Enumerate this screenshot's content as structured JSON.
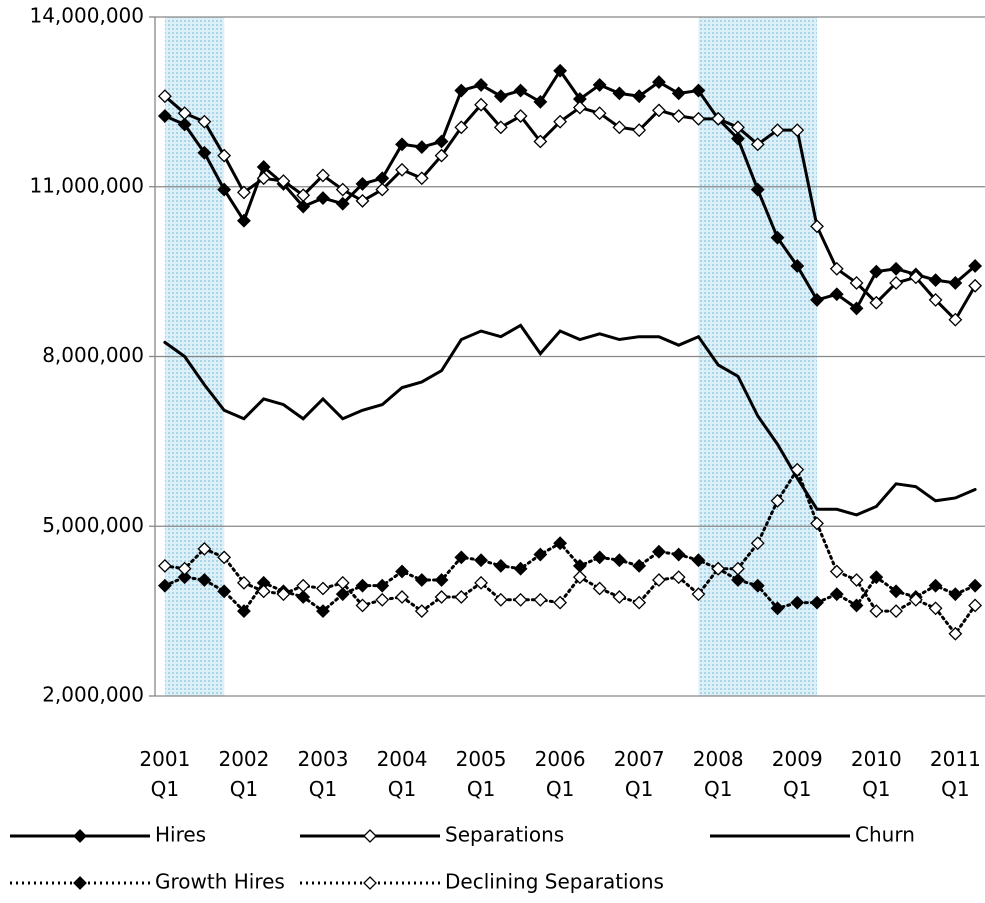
{
  "chart_data": {
    "type": "line",
    "categories": [
      "2001 Q1",
      null,
      null,
      null,
      "2002 Q1",
      null,
      null,
      null,
      "2003 Q1",
      null,
      null,
      null,
      "2004 Q1",
      null,
      null,
      null,
      "2005 Q1",
      null,
      null,
      null,
      "2006 Q1",
      null,
      null,
      null,
      "2007 Q1",
      null,
      null,
      null,
      "2008 Q1",
      null,
      null,
      null,
      "2009 Q1",
      null,
      null,
      null,
      "2010 Q1",
      null,
      null,
      null,
      "2011 Q1",
      null
    ],
    "ylim": [
      2000000,
      14000000
    ],
    "yticks": [
      {
        "value": 2000000,
        "label": "2,000,000"
      },
      {
        "value": 5000000,
        "label": "5,000,000"
      },
      {
        "value": 8000000,
        "label": "8,000,000"
      },
      {
        "value": 11000000,
        "label": "11,000,000"
      },
      {
        "value": 14000000,
        "label": "14,000,000"
      }
    ],
    "grid": true,
    "recession_shading": [
      {
        "start": 0,
        "end": 3
      },
      {
        "start": 27,
        "end": 33
      }
    ],
    "series": [
      {
        "name": "Hires",
        "color": "#000000",
        "line_style": "solid",
        "marker": "diamond-filled",
        "values": [
          12250000,
          12100000,
          11600000,
          10950000,
          10400000,
          11350000,
          11050000,
          10650000,
          10800000,
          10700000,
          11050000,
          11150000,
          11750000,
          11700000,
          11800000,
          12700000,
          12800000,
          12600000,
          12700000,
          12500000,
          13050000,
          12550000,
          12800000,
          12650000,
          12600000,
          12850000,
          12650000,
          12700000,
          12200000,
          11850000,
          10950000,
          10100000,
          9600000,
          9000000,
          9100000,
          8850000,
          9500000,
          9550000,
          9450000,
          9350000,
          9300000,
          9600000
        ]
      },
      {
        "name": "Separations",
        "color": "#000000",
        "line_style": "solid",
        "marker": "diamond-open",
        "values": [
          12600000,
          12300000,
          12150000,
          11550000,
          10900000,
          11150000,
          11100000,
          10850000,
          11200000,
          10950000,
          10750000,
          10950000,
          11300000,
          11150000,
          11550000,
          12050000,
          12450000,
          12050000,
          12250000,
          11800000,
          12150000,
          12400000,
          12300000,
          12050000,
          12000000,
          12350000,
          12250000,
          12200000,
          12200000,
          12050000,
          11750000,
          12000000,
          12000000,
          10300000,
          9550000,
          9300000,
          8950000,
          9300000,
          9400000,
          9000000,
          8650000,
          9250000
        ]
      },
      {
        "name": "Churn",
        "color": "#000000",
        "line_style": "solid",
        "marker": "none",
        "values": [
          8250000,
          8000000,
          7500000,
          7050000,
          6900000,
          7250000,
          7150000,
          6900000,
          7250000,
          6900000,
          7050000,
          7150000,
          7450000,
          7550000,
          7750000,
          8300000,
          8450000,
          8350000,
          8550000,
          8050000,
          8450000,
          8300000,
          8400000,
          8300000,
          8350000,
          8350000,
          8200000,
          8350000,
          7850000,
          7650000,
          6950000,
          6450000,
          5850000,
          5300000,
          5300000,
          5200000,
          5350000,
          5750000,
          5700000,
          5450000,
          5500000,
          5650000
        ]
      },
      {
        "name": "Growth Hires",
        "color": "#000000",
        "line_style": "dotted",
        "marker": "diamond-filled",
        "values": [
          3950000,
          4100000,
          4050000,
          3850000,
          3500000,
          4000000,
          3850000,
          3750000,
          3500000,
          3800000,
          3950000,
          3950000,
          4200000,
          4050000,
          4050000,
          4450000,
          4400000,
          4300000,
          4250000,
          4500000,
          4700000,
          4300000,
          4450000,
          4400000,
          4300000,
          4550000,
          4500000,
          4400000,
          4250000,
          4050000,
          3950000,
          3550000,
          3650000,
          3650000,
          3800000,
          3600000,
          4100000,
          3850000,
          3750000,
          3950000,
          3800000,
          3950000
        ]
      },
      {
        "name": "Declining Separations",
        "color": "#000000",
        "line_style": "dotted",
        "marker": "diamond-open",
        "values": [
          4300000,
          4250000,
          4600000,
          4450000,
          4000000,
          3850000,
          3800000,
          3950000,
          3900000,
          4000000,
          3600000,
          3700000,
          3750000,
          3500000,
          3750000,
          3750000,
          4000000,
          3700000,
          3700000,
          3700000,
          3650000,
          4100000,
          3900000,
          3750000,
          3650000,
          4050000,
          4100000,
          3800000,
          4250000,
          4250000,
          4700000,
          5450000,
          6000000,
          5050000,
          4200000,
          4050000,
          3500000,
          3500000,
          3700000,
          3550000,
          3100000,
          3600000
        ]
      }
    ]
  }
}
